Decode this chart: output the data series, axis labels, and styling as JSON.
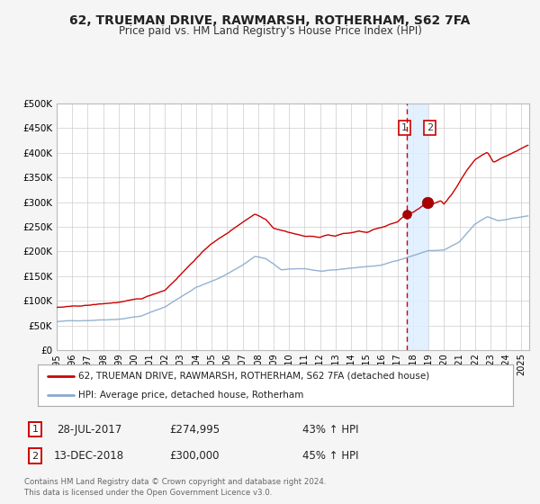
{
  "title": "62, TRUEMAN DRIVE, RAWMARSH, ROTHERHAM, S62 7FA",
  "subtitle": "Price paid vs. HM Land Registry's House Price Index (HPI)",
  "legend_line1": "62, TRUEMAN DRIVE, RAWMARSH, ROTHERHAM, S62 7FA (detached house)",
  "legend_line2": "HPI: Average price, detached house, Rotherham",
  "sale1_label": "1",
  "sale1_date": "28-JUL-2017",
  "sale1_price": "£274,995",
  "sale1_pct": "43% ↑ HPI",
  "sale2_label": "2",
  "sale2_date": "13-DEC-2018",
  "sale2_price": "£300,000",
  "sale2_pct": "45% ↑ HPI",
  "sale1_year": 2017.58,
  "sale1_value": 274995,
  "sale2_year": 2018.96,
  "sale2_value": 300000,
  "red_line_color": "#cc0000",
  "blue_line_color": "#88aacc",
  "shade_color": "#ddeeff",
  "dashed_line_color": "#cc0000",
  "grid_color": "#cccccc",
  "background_color": "#f5f5f5",
  "plot_bg_color": "#ffffff",
  "footer_text": "Contains HM Land Registry data © Crown copyright and database right 2024.\nThis data is licensed under the Open Government Licence v3.0.",
  "ylim": [
    0,
    500000
  ],
  "yticks": [
    0,
    50000,
    100000,
    150000,
    200000,
    250000,
    300000,
    350000,
    400000,
    450000,
    500000
  ],
  "ytick_labels": [
    "£0",
    "£50K",
    "£100K",
    "£150K",
    "£200K",
    "£250K",
    "£300K",
    "£350K",
    "£400K",
    "£450K",
    "£500K"
  ],
  "xlim_start": 1995,
  "xlim_end": 2025.5
}
